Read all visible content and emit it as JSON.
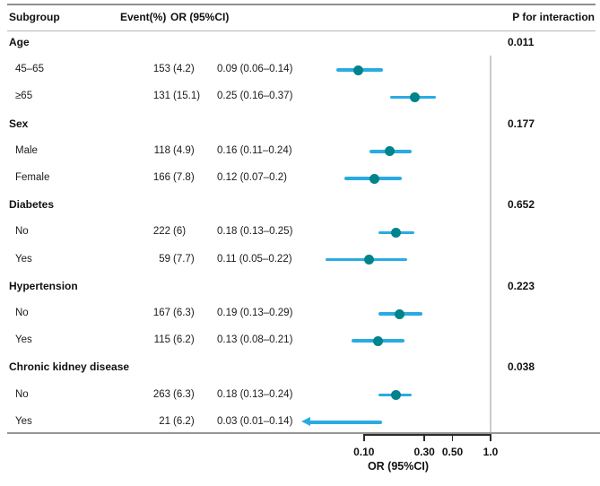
{
  "header": {
    "subgroup": "Subgroup",
    "event": "Event(%)",
    "or": "OR (95%CI)",
    "p_interaction": "P for interaction"
  },
  "colors": {
    "point": "#00838A",
    "ci_line": "#29ABE2",
    "reference_line": "#CBCBCB",
    "axis": "#2B2B2B"
  },
  "chart_data": {
    "type": "scatter",
    "subtype": "forest-plot",
    "title": "",
    "xlabel": "OR (95%CI)",
    "x_scale": "log",
    "x_ticks": [
      0.1,
      0.3,
      0.5,
      1.0
    ],
    "x_tick_labels": [
      "0.10",
      "0.30",
      "0.50",
      "1.0"
    ],
    "reference_line": 1.0,
    "legend": "none",
    "groups": [
      {
        "label": "Age",
        "p_interaction": "0.011",
        "rows": [
          {
            "label": "45–65",
            "event": "153 (4.2)",
            "or_text": "0.09 (0.06–0.14)",
            "or": 0.09,
            "ci_low": 0.06,
            "ci_high": 0.14,
            "arrow_left": false
          },
          {
            "label": "≥65",
            "event": "131 (15.1)",
            "or_text": "0.25 (0.16–0.37)",
            "or": 0.25,
            "ci_low": 0.16,
            "ci_high": 0.37,
            "arrow_left": false
          }
        ]
      },
      {
        "label": "Sex",
        "p_interaction": "0.177",
        "rows": [
          {
            "label": "Male",
            "event": "118 (4.9)",
            "or_text": "0.16 (0.11–0.24)",
            "or": 0.16,
            "ci_low": 0.11,
            "ci_high": 0.24,
            "arrow_left": false
          },
          {
            "label": "Female",
            "event": "166 (7.8)",
            "or_text": "0.12 (0.07–0.2)",
            "or": 0.12,
            "ci_low": 0.07,
            "ci_high": 0.2,
            "arrow_left": false
          }
        ]
      },
      {
        "label": "Diabetes",
        "p_interaction": "0.652",
        "rows": [
          {
            "label": "No",
            "event": "222 (6)",
            "or_text": "0.18 (0.13–0.25)",
            "or": 0.18,
            "ci_low": 0.13,
            "ci_high": 0.25,
            "arrow_left": false
          },
          {
            "label": "Yes",
            "event": "59 (7.7)",
            "or_text": "0.11 (0.05–0.22)",
            "or": 0.11,
            "ci_low": 0.05,
            "ci_high": 0.22,
            "arrow_left": false
          }
        ]
      },
      {
        "label": "Hypertension",
        "p_interaction": "0.223",
        "rows": [
          {
            "label": "No",
            "event": "167 (6.3)",
            "or_text": "0.19 (0.13–0.29)",
            "or": 0.19,
            "ci_low": 0.13,
            "ci_high": 0.29,
            "arrow_left": false
          },
          {
            "label": "Yes",
            "event": "115 (6.2)",
            "or_text": "0.13 (0.08–0.21)",
            "or": 0.13,
            "ci_low": 0.08,
            "ci_high": 0.21,
            "arrow_left": false
          }
        ]
      },
      {
        "label": "Chronic kidney disease",
        "p_interaction": "0.038",
        "rows": [
          {
            "label": "No",
            "event": "263 (6.3)",
            "or_text": "0.18 (0.13–0.24)",
            "or": 0.18,
            "ci_low": 0.13,
            "ci_high": 0.24,
            "arrow_left": false
          },
          {
            "label": "Yes",
            "event": "21 (6.2)",
            "or_text": "0.03 (0.01–0.14)",
            "or": 0.03,
            "ci_low": 0.01,
            "ci_high": 0.14,
            "arrow_left": true
          }
        ]
      }
    ]
  }
}
